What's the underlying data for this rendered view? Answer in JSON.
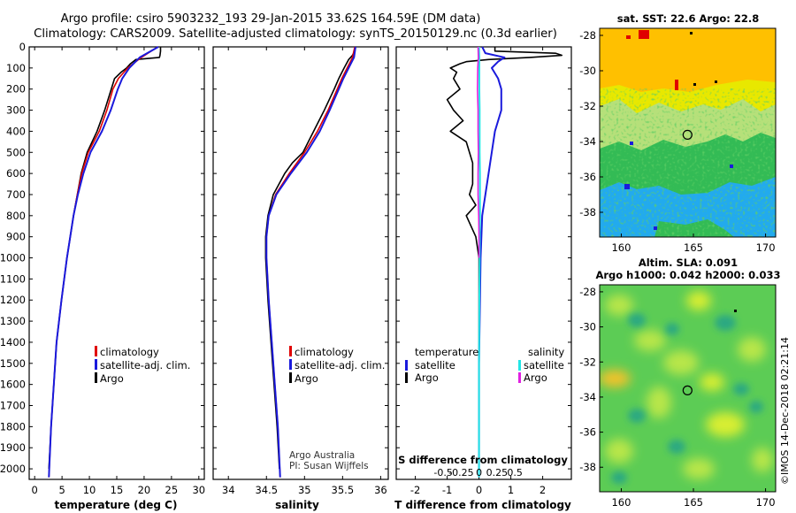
{
  "header": {
    "line1": "Argo profile: csiro 5903232_193 29-Jan-2015 33.62S 164.59E (DM data)",
    "line2": "Climatology: CARS2009. Satellite-adjusted climatology: synTS_20150129.nc (0.3d earlier)"
  },
  "credit": {
    "org": "Argo Australia",
    "pi": "PI: Susan Wijffels"
  },
  "stamp": "©IMOS 14-Dec-2018 02:21:14",
  "colors": {
    "argo": "#000000",
    "climatology": "#e00000",
    "satellite": "#1a1adc",
    "sat_salinity": "#22e6e6",
    "argo_salinity": "#e020e0",
    "sst_orange": "#ffc000",
    "sst_yellow": "#e8e800",
    "sst_green": "#33bb55",
    "sst_blue": "#22aaee"
  },
  "chart_data": [
    {
      "type": "line",
      "id": "temperature",
      "xlabel": "temperature (deg C)",
      "ylabel": "",
      "xlim": [
        -1,
        31
      ],
      "ylim": [
        2050,
        0
      ],
      "xticks": [
        0,
        5,
        10,
        15,
        20,
        25,
        30
      ],
      "yticks": [
        0,
        100,
        200,
        300,
        400,
        500,
        600,
        700,
        800,
        900,
        1000,
        1100,
        1200,
        1300,
        1400,
        1500,
        1600,
        1700,
        1800,
        1900,
        2000
      ],
      "legend": [
        "climatology",
        "satellite-adj. clim.",
        "Argo"
      ],
      "series": [
        {
          "name": "Argo",
          "color": "#000000",
          "depth": [
            0,
            20,
            40,
            50,
            60,
            80,
            100,
            120,
            150,
            200,
            300,
            400,
            500,
            600,
            700,
            800,
            1000,
            1200,
            1400,
            1600,
            1800,
            2000
          ],
          "values": [
            23,
            23,
            22.9,
            22.8,
            18.5,
            17.5,
            16.8,
            15.8,
            14.6,
            14.0,
            12.8,
            11.4,
            9.6,
            8.5,
            7.8,
            7.1,
            5.9,
            4.9,
            4.0,
            3.5,
            3.0,
            2.6
          ]
        },
        {
          "name": "climatology",
          "color": "#e00000",
          "depth": [
            0,
            50,
            100,
            150,
            200,
            300,
            400,
            500,
            600,
            700,
            800,
            1000,
            1200,
            1400,
            1600,
            1800,
            2040
          ],
          "values": [
            22.5,
            19.5,
            17.0,
            15.3,
            14.3,
            13.2,
            11.8,
            9.8,
            8.6,
            7.8,
            7.1,
            5.9,
            4.9,
            4.0,
            3.5,
            3.0,
            2.6
          ]
        },
        {
          "name": "satellite-adj. clim.",
          "color": "#1a1adc",
          "depth": [
            0,
            50,
            100,
            150,
            200,
            300,
            400,
            500,
            600,
            700,
            800,
            1000,
            1200,
            1400,
            1600,
            1800,
            2040
          ],
          "values": [
            22.6,
            19.2,
            17.3,
            16.0,
            15.2,
            13.9,
            12.3,
            10.2,
            8.9,
            7.9,
            7.1,
            5.9,
            4.9,
            4.0,
            3.5,
            3.0,
            2.6
          ]
        }
      ]
    },
    {
      "type": "line",
      "id": "salinity",
      "xlabel": "salinity",
      "ylabel": "",
      "xlim": [
        33.8,
        36.1
      ],
      "ylim": [
        2050,
        0
      ],
      "xticks": [
        34,
        34.5,
        35,
        35.5,
        36
      ],
      "legend": [
        "climatology",
        "satellite-adj. clim.",
        "Argo"
      ],
      "series": [
        {
          "name": "Argo",
          "color": "#000000",
          "depth": [
            0,
            20,
            40,
            60,
            100,
            150,
            200,
            300,
            400,
            500,
            550,
            600,
            700,
            800,
            900,
            1000,
            1200,
            1400,
            1600,
            1800,
            2000
          ],
          "values": [
            35.67,
            35.66,
            35.63,
            35.58,
            35.52,
            35.45,
            35.39,
            35.26,
            35.12,
            34.98,
            34.84,
            34.74,
            34.59,
            34.52,
            34.49,
            34.49,
            34.52,
            34.56,
            34.6,
            34.64,
            34.67
          ]
        },
        {
          "name": "climatology",
          "color": "#e00000",
          "depth": [
            0,
            50,
            100,
            150,
            200,
            300,
            400,
            500,
            600,
            700,
            800,
            900,
            1000,
            1200,
            1400,
            1600,
            1800,
            2040
          ],
          "values": [
            35.66,
            35.63,
            35.56,
            35.49,
            35.43,
            35.31,
            35.17,
            35.0,
            34.8,
            34.62,
            34.53,
            34.5,
            34.5,
            34.53,
            34.57,
            34.61,
            34.65,
            34.68
          ]
        },
        {
          "name": "satellite-adj. clim.",
          "color": "#1a1adc",
          "depth": [
            0,
            50,
            100,
            150,
            200,
            300,
            400,
            500,
            600,
            700,
            800,
            900,
            1000,
            1200,
            1400,
            1600,
            1800,
            2040
          ],
          "values": [
            35.67,
            35.65,
            35.58,
            35.51,
            35.45,
            35.33,
            35.2,
            35.03,
            34.82,
            34.63,
            34.53,
            34.5,
            34.5,
            34.53,
            34.57,
            34.61,
            34.65,
            34.68
          ]
        }
      ]
    },
    {
      "type": "line",
      "id": "difference",
      "xlabel": "T difference from climatology",
      "xlabel_top": "S difference from climatology",
      "xlim": [
        -2.6,
        2.9
      ],
      "xticks": [
        -2,
        -1,
        0,
        1,
        2
      ],
      "xticks_s": [
        -0.5,
        -0.25,
        0,
        0.25,
        0.5
      ],
      "xticklabels_s": [
        "-0.5",
        "-0.25",
        "0",
        "0.25",
        "0.5"
      ],
      "ylim": [
        2050,
        0
      ],
      "legend_temperature_title": "temperature",
      "legend_salinity_title": "salinity",
      "legend": [
        "satellite",
        "Argo",
        "satellite",
        "Argo"
      ],
      "series": [
        {
          "name": "temperature Argo",
          "color": "#000000",
          "depth": [
            0,
            20,
            30,
            40,
            50,
            60,
            70,
            80,
            100,
            120,
            150,
            200,
            250,
            300,
            350,
            400,
            450,
            500,
            550,
            600,
            650,
            700,
            750,
            800,
            900,
            1000,
            1200,
            1500,
            2000
          ],
          "values": [
            0.5,
            0.5,
            2.4,
            2.6,
            1.6,
            0.3,
            -0.4,
            -0.6,
            -0.9,
            -0.7,
            -0.8,
            -0.6,
            -1.0,
            -0.8,
            -0.5,
            -0.9,
            -0.4,
            -0.3,
            -0.2,
            -0.2,
            -0.2,
            -0.3,
            -0.1,
            -0.4,
            -0.1,
            0.0,
            0.0,
            0.0,
            0.0
          ]
        },
        {
          "name": "temperature satellite",
          "color": "#1a1adc",
          "depth": [
            0,
            30,
            50,
            70,
            100,
            150,
            200,
            300,
            400,
            500,
            600,
            700,
            800,
            1000,
            1500,
            2040
          ],
          "values": [
            0.1,
            0.2,
            0.8,
            0.6,
            0.4,
            0.6,
            0.7,
            0.7,
            0.5,
            0.4,
            0.3,
            0.2,
            0.1,
            0.05,
            0.0,
            0.0
          ]
        },
        {
          "name": "salinity satellite",
          "color": "#22e6e6",
          "depth": [
            0,
            50,
            100,
            200,
            300,
            400,
            500,
            600,
            800,
            1000,
            1200,
            1500,
            1800,
            2040
          ],
          "values": [
            0.0,
            0.01,
            0.01,
            0.01,
            0.02,
            0.02,
            0.02,
            0.03,
            0.03,
            0.02,
            0.01,
            0.0,
            0.0,
            0.0
          ]
        },
        {
          "name": "salinity Argo",
          "color": "#e020e0",
          "depth": [
            0,
            50,
            100,
            200,
            300,
            400,
            500,
            600,
            700,
            800,
            900,
            1000
          ],
          "values": [
            -0.03,
            -0.02,
            -0.04,
            -0.05,
            -0.03,
            -0.03,
            -0.02,
            -0.03,
            -0.03,
            -0.01,
            0.0,
            0.0
          ]
        }
      ]
    },
    {
      "type": "heatmap",
      "id": "sst_map",
      "title": "sat. SST: 22.6 Argo: 22.8",
      "x_ticklabels": [
        "160",
        "165",
        "170"
      ],
      "xticks": [
        160,
        165,
        170
      ],
      "y_ticklabels": [
        "-28",
        "-30",
        "-32",
        "-34",
        "-36",
        "-38"
      ],
      "yticks": [
        -28,
        -30,
        -32,
        -34,
        -36,
        -38
      ],
      "xlim": [
        158.5,
        170.7
      ],
      "ylim": [
        -39.4,
        -27.6
      ],
      "marker": {
        "lon": 164.59,
        "lat": -33.62
      }
    },
    {
      "type": "heatmap",
      "id": "sla_map",
      "title": "Altim. SLA: 0.091",
      "subtitle": "Argo h1000: 0.042 h2000: 0.033",
      "x_ticklabels": [
        "160",
        "165",
        "170"
      ],
      "xticks": [
        160,
        165,
        170
      ],
      "y_ticklabels": [
        "-28",
        "-30",
        "-32",
        "-34",
        "-36",
        "-38"
      ],
      "yticks": [
        -28,
        -30,
        -32,
        -34,
        -36,
        -38
      ],
      "xlim": [
        158.5,
        170.7
      ],
      "ylim": [
        -39.4,
        -27.6
      ],
      "marker": {
        "lon": 164.59,
        "lat": -33.62
      }
    }
  ]
}
